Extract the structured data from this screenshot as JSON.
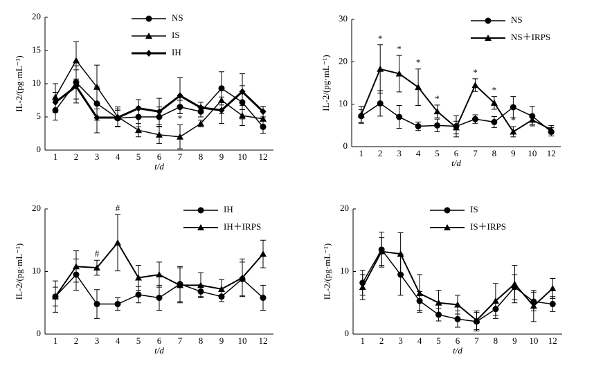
{
  "chart_data": [
    {
      "type": "line",
      "ylabel": "IL-2/(pg·mL⁻¹)",
      "xlabel": "t/d",
      "categories": [
        "1",
        "2",
        "3",
        "4",
        "5",
        "6",
        "7",
        "8",
        "9",
        "10",
        "12"
      ],
      "ylim": [
        0,
        20
      ],
      "yticks": [
        0,
        5,
        10,
        15,
        20
      ],
      "legend": "upper center",
      "series": [
        {
          "name": "NS",
          "color": "#000000",
          "marker": "circle",
          "line_width": 1.5,
          "values": [
            6,
            10.2,
            7,
            4.8,
            5,
            5,
            6.5,
            5.8,
            9.3,
            7.2,
            3.5
          ],
          "errors": [
            1.5,
            2.5,
            2.5,
            1.2,
            1.5,
            1.5,
            1,
            0.8,
            2.5,
            2.5,
            1
          ]
        },
        {
          "name": "IS",
          "color": "#000000",
          "marker": "triangle",
          "line_width": 1.5,
          "values": [
            8,
            13.5,
            9.5,
            5,
            3,
            2.3,
            2,
            4,
            7.5,
            5.2,
            4.7
          ],
          "errors": [
            2,
            2.8,
            3.3,
            1.5,
            1,
            1.3,
            1.8,
            0.5,
            2,
            1.5,
            1.2
          ],
          "annotations": [
            null,
            null,
            null,
            null,
            null,
            null,
            "*",
            null,
            null,
            null,
            null
          ]
        },
        {
          "name": "IH",
          "color": "#000000",
          "marker": "diamond",
          "line_width": 3,
          "values": [
            7.2,
            9.6,
            4.9,
            4.9,
            6.3,
            5.8,
            8.2,
            6.4,
            6,
            8.8,
            5.8
          ],
          "errors": [
            1.5,
            2.5,
            2.3,
            1.3,
            1.3,
            2,
            2.7,
            0.8,
            2,
            2.7,
            0.8
          ]
        }
      ]
    },
    {
      "type": "line",
      "ylabel": "IL-2/(pg·mL⁻¹)",
      "xlabel": "t/d",
      "categories": [
        "1",
        "2",
        "3",
        "4",
        "5",
        "6",
        "7",
        "8",
        "9",
        "10",
        "12"
      ],
      "ylim": [
        0,
        30
      ],
      "yticks": [
        0,
        10,
        20,
        30
      ],
      "legend": "upper right",
      "series": [
        {
          "name": "NS",
          "color": "#000000",
          "marker": "circle",
          "line_width": 1.5,
          "values": [
            7.2,
            10.2,
            7,
            4.8,
            5,
            4.8,
            6.5,
            5.8,
            9.3,
            7.2,
            3.5
          ],
          "errors": [
            1.5,
            3,
            2.7,
            1,
            1.5,
            2.5,
            1,
            1.3,
            2.5,
            2.3,
            1
          ]
        },
        {
          "name": "NS＋IRPS",
          "color": "#000000",
          "marker": "triangle",
          "line_width": 2,
          "values": [
            7.5,
            18.3,
            17.2,
            14,
            8.3,
            4.5,
            14.5,
            10.3,
            3.5,
            6.3,
            4
          ],
          "errors": [
            2,
            5.7,
            4.3,
            4.3,
            1.5,
            1.5,
            1.5,
            1.5,
            1.2,
            1,
            1
          ],
          "annotations": [
            null,
            "*",
            "*",
            "*",
            "*",
            null,
            "*",
            "*",
            "*",
            null,
            null
          ]
        }
      ]
    },
    {
      "type": "line",
      "ylabel": "IL-2/(pg·mL⁻¹)",
      "xlabel": "t/d",
      "categories": [
        "1",
        "2",
        "3",
        "4",
        "5",
        "6",
        "7",
        "8",
        "9",
        "10",
        "12"
      ],
      "ylim": [
        0,
        20
      ],
      "yticks": [
        0,
        10,
        20
      ],
      "legend": "upper right",
      "series": [
        {
          "name": "IH",
          "color": "#000000",
          "marker": "circle",
          "line_width": 1.5,
          "values": [
            6,
            9.5,
            4.8,
            4.8,
            6.3,
            5.8,
            8,
            6.8,
            6,
            8.8,
            5.8
          ],
          "errors": [
            1.5,
            2.5,
            2.3,
            1,
            1.3,
            2,
            2.8,
            0.8,
            0.8,
            2.7,
            2
          ]
        },
        {
          "name": "IH＋IRPS",
          "color": "#000000",
          "marker": "triangle",
          "line_width": 2,
          "values": [
            6,
            10.8,
            10.6,
            14.6,
            9,
            9.5,
            7.8,
            7.8,
            7.2,
            9,
            12.8
          ],
          "errors": [
            2.5,
            2.5,
            1.2,
            4.5,
            2,
            2,
            2.8,
            2,
            1.5,
            3,
            2.2
          ],
          "annotations": [
            null,
            null,
            "#",
            "#",
            null,
            null,
            null,
            null,
            null,
            null,
            null
          ]
        }
      ]
    },
    {
      "type": "line",
      "ylabel": "IL-2/(pg·mL⁻¹)",
      "xlabel": "t/d",
      "categories": [
        "1",
        "2",
        "3",
        "4",
        "5",
        "6",
        "7",
        "8",
        "9",
        "10",
        "12"
      ],
      "ylim": [
        0,
        20
      ],
      "yticks": [
        0,
        10,
        20
      ],
      "legend": "upper center",
      "series": [
        {
          "name": "IS",
          "color": "#000000",
          "marker": "circle",
          "line_width": 1.5,
          "values": [
            8.2,
            13.5,
            9.5,
            5.3,
            3.1,
            2.4,
            2,
            4,
            7.5,
            5.2,
            4.8
          ],
          "errors": [
            2,
            2.8,
            3.3,
            1.5,
            1,
            1.3,
            1.5,
            1,
            2,
            1.5,
            1.2
          ]
        },
        {
          "name": "IS＋IRPS",
          "color": "#000000",
          "marker": "triangle",
          "line_width": 2,
          "values": [
            7.5,
            13.2,
            12.8,
            6.5,
            5,
            4.7,
            2.2,
            5.3,
            8,
            4.5,
            7.3
          ],
          "errors": [
            2,
            2.2,
            3.4,
            3,
            2,
            1.5,
            1.5,
            2.8,
            3,
            2.5,
            1.6
          ]
        }
      ]
    }
  ]
}
